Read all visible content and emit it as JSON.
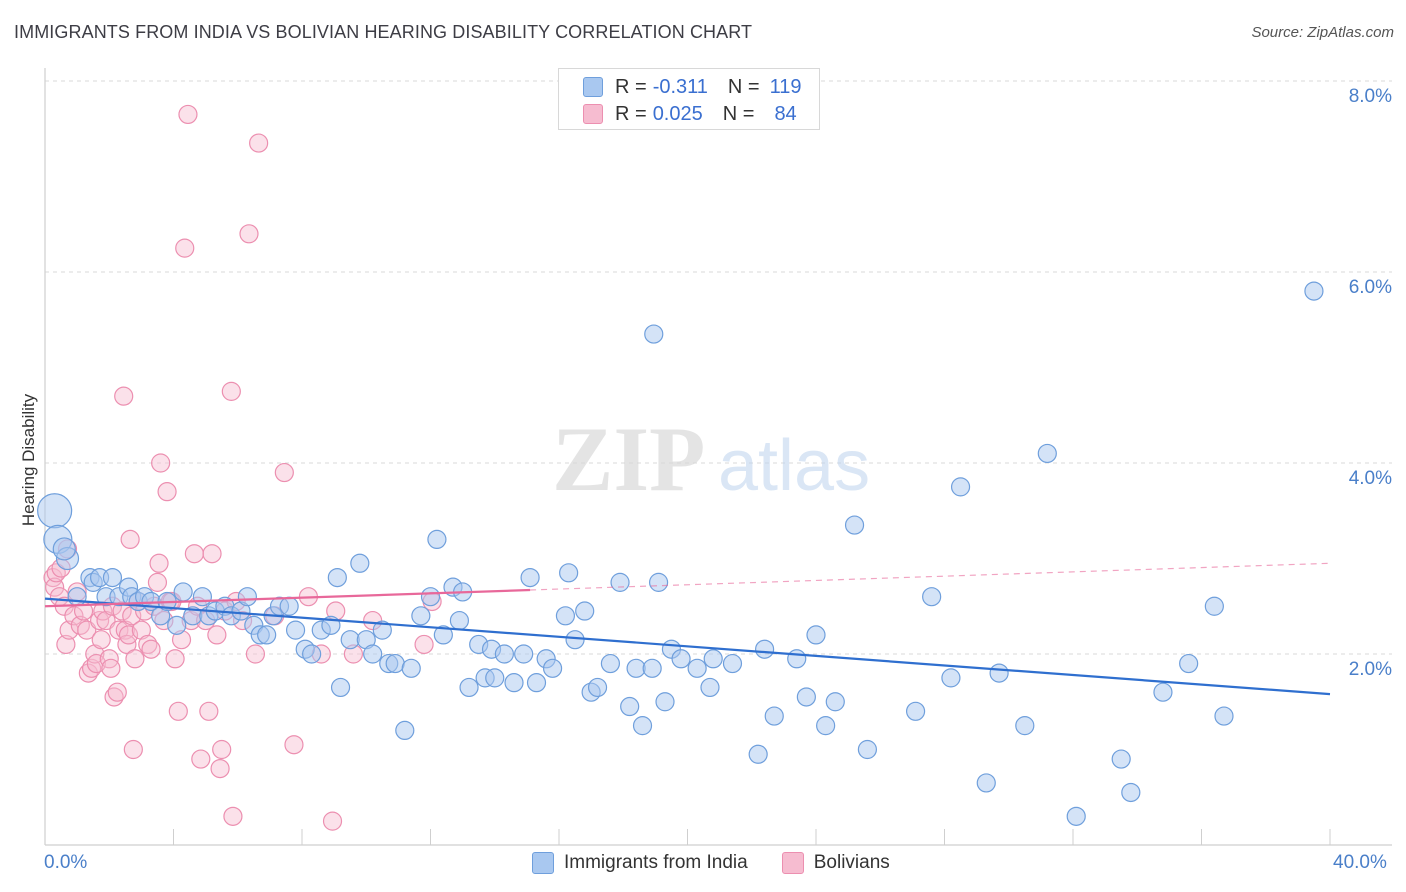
{
  "header": {
    "title": "IMMIGRANTS FROM INDIA VS BOLIVIAN HEARING DISABILITY CORRELATION CHART",
    "source": "Source: ZipAtlas.com"
  },
  "watermark": {
    "zip": "ZIP",
    "atlas": "atlas"
  },
  "legend_top": [
    {
      "r_label": "R =",
      "r_value": "-0.311",
      "n_label": "N =",
      "n_value": "119"
    },
    {
      "r_label": "R =",
      "r_value": "0.025",
      "n_label": "N =",
      "n_value": "84"
    }
  ],
  "legend_bottom": [
    {
      "label": "Immigrants from India"
    },
    {
      "label": "Bolivians"
    }
  ],
  "colors": {
    "india_fill": "#a9c8f0",
    "india_stroke": "#6f9fdc",
    "india_line": "#2f6fcf",
    "bolivia_fill": "#f6bcd0",
    "bolivia_stroke": "#ec8fb0",
    "bolivia_line": "#e8689a",
    "tick_text": "#4a7fc9",
    "grid": "#dadada"
  },
  "chart_data": {
    "type": "scatter",
    "title": "IMMIGRANTS FROM INDIA VS BOLIVIAN HEARING DISABILITY CORRELATION CHART",
    "xlabel": "",
    "ylabel": "Hearing Disability",
    "xlim": [
      0,
      40
    ],
    "ylim": [
      0,
      8.5
    ],
    "x_tick_labels": [
      "0.0%",
      "40.0%"
    ],
    "y_ticks": [
      2,
      4,
      6,
      8
    ],
    "y_tick_labels": [
      "2.0%",
      "4.0%",
      "6.0%",
      "8.0%"
    ],
    "grid": "horizontal dashed",
    "series": [
      {
        "name": "Immigrants from India",
        "points": [
          [
            0.3,
            3.5
          ],
          [
            0.4,
            3.2
          ],
          [
            0.7,
            3.0
          ],
          [
            0.6,
            3.1
          ],
          [
            1.0,
            2.6
          ],
          [
            1.4,
            2.8
          ],
          [
            1.5,
            2.75
          ],
          [
            1.7,
            2.8
          ],
          [
            1.9,
            2.6
          ],
          [
            2.1,
            2.8
          ],
          [
            2.3,
            2.6
          ],
          [
            2.6,
            2.7
          ],
          [
            2.7,
            2.6
          ],
          [
            2.9,
            2.55
          ],
          [
            3.1,
            2.6
          ],
          [
            3.3,
            2.55
          ],
          [
            3.6,
            2.4
          ],
          [
            3.8,
            2.55
          ],
          [
            4.1,
            2.3
          ],
          [
            4.3,
            2.65
          ],
          [
            4.6,
            2.4
          ],
          [
            4.9,
            2.6
          ],
          [
            5.1,
            2.4
          ],
          [
            5.3,
            2.45
          ],
          [
            5.6,
            2.5
          ],
          [
            5.8,
            2.4
          ],
          [
            6.1,
            2.45
          ],
          [
            6.3,
            2.6
          ],
          [
            6.5,
            2.3
          ],
          [
            6.7,
            2.2
          ],
          [
            6.9,
            2.2
          ],
          [
            7.1,
            2.4
          ],
          [
            7.3,
            2.5
          ],
          [
            7.6,
            2.5
          ],
          [
            7.8,
            2.25
          ],
          [
            8.1,
            2.05
          ],
          [
            8.3,
            2.0
          ],
          [
            8.6,
            2.25
          ],
          [
            8.9,
            2.3
          ],
          [
            9.1,
            2.8
          ],
          [
            9.2,
            1.65
          ],
          [
            9.5,
            2.15
          ],
          [
            9.8,
            2.95
          ],
          [
            10.0,
            2.15
          ],
          [
            10.2,
            2.0
          ],
          [
            10.5,
            2.25
          ],
          [
            10.7,
            1.9
          ],
          [
            10.9,
            1.9
          ],
          [
            11.2,
            1.2
          ],
          [
            11.4,
            1.85
          ],
          [
            11.7,
            2.4
          ],
          [
            12.0,
            2.6
          ],
          [
            12.2,
            3.2
          ],
          [
            12.4,
            2.2
          ],
          [
            12.7,
            2.7
          ],
          [
            12.9,
            2.35
          ],
          [
            13.0,
            2.65
          ],
          [
            13.2,
            1.65
          ],
          [
            13.5,
            2.1
          ],
          [
            13.7,
            1.75
          ],
          [
            13.9,
            2.05
          ],
          [
            14.0,
            1.75
          ],
          [
            14.3,
            2.0
          ],
          [
            14.6,
            1.7
          ],
          [
            14.9,
            2.0
          ],
          [
            15.1,
            2.8
          ],
          [
            15.3,
            1.7
          ],
          [
            15.6,
            1.95
          ],
          [
            15.8,
            1.85
          ],
          [
            16.2,
            2.4
          ],
          [
            16.3,
            2.85
          ],
          [
            16.5,
            2.15
          ],
          [
            16.8,
            2.45
          ],
          [
            17.0,
            1.6
          ],
          [
            17.2,
            1.65
          ],
          [
            17.6,
            1.9
          ],
          [
            17.9,
            2.75
          ],
          [
            18.2,
            1.45
          ],
          [
            18.4,
            1.85
          ],
          [
            18.6,
            1.25
          ],
          [
            18.9,
            1.85
          ],
          [
            18.95,
            5.35
          ],
          [
            19.1,
            2.75
          ],
          [
            19.3,
            1.5
          ],
          [
            19.5,
            2.05
          ],
          [
            19.8,
            1.95
          ],
          [
            20.3,
            1.85
          ],
          [
            20.7,
            1.65
          ],
          [
            20.8,
            1.95
          ],
          [
            21.4,
            1.9
          ],
          [
            22.2,
            0.95
          ],
          [
            22.4,
            2.05
          ],
          [
            22.7,
            1.35
          ],
          [
            23.4,
            1.95
          ],
          [
            23.7,
            1.55
          ],
          [
            24.0,
            2.2
          ],
          [
            24.3,
            1.25
          ],
          [
            24.6,
            1.5
          ],
          [
            25.2,
            3.35
          ],
          [
            25.6,
            1.0
          ],
          [
            27.1,
            1.4
          ],
          [
            27.6,
            2.6
          ],
          [
            28.2,
            1.75
          ],
          [
            28.5,
            3.75
          ],
          [
            29.3,
            0.65
          ],
          [
            29.7,
            1.8
          ],
          [
            30.5,
            1.25
          ],
          [
            31.2,
            4.1
          ],
          [
            32.1,
            0.3
          ],
          [
            33.5,
            0.9
          ],
          [
            33.8,
            0.55
          ],
          [
            34.8,
            1.6
          ],
          [
            35.6,
            1.9
          ],
          [
            36.4,
            2.5
          ],
          [
            36.7,
            1.35
          ],
          [
            39.5,
            5.8
          ]
        ],
        "trend": {
          "x": [
            0,
            40
          ],
          "y": [
            2.58,
            1.58
          ]
        }
      },
      {
        "name": "Bolivians",
        "points": [
          [
            0.25,
            2.8
          ],
          [
            0.3,
            2.7
          ],
          [
            0.35,
            2.85
          ],
          [
            0.45,
            2.6
          ],
          [
            0.5,
            2.9
          ],
          [
            0.6,
            2.5
          ],
          [
            0.65,
            2.1
          ],
          [
            0.7,
            3.1
          ],
          [
            0.75,
            2.25
          ],
          [
            0.9,
            2.4
          ],
          [
            1.0,
            2.65
          ],
          [
            1.1,
            2.3
          ],
          [
            1.2,
            2.45
          ],
          [
            1.3,
            2.25
          ],
          [
            1.35,
            1.8
          ],
          [
            1.45,
            1.85
          ],
          [
            1.55,
            2.0
          ],
          [
            1.6,
            1.9
          ],
          [
            1.7,
            2.35
          ],
          [
            1.75,
            2.15
          ],
          [
            1.8,
            2.45
          ],
          [
            1.9,
            2.35
          ],
          [
            2.0,
            1.95
          ],
          [
            2.05,
            1.85
          ],
          [
            2.1,
            2.5
          ],
          [
            2.15,
            1.55
          ],
          [
            2.25,
            1.6
          ],
          [
            2.3,
            2.25
          ],
          [
            2.4,
            2.45
          ],
          [
            2.45,
            4.7
          ],
          [
            2.5,
            2.25
          ],
          [
            2.55,
            2.1
          ],
          [
            2.6,
            2.2
          ],
          [
            2.65,
            3.2
          ],
          [
            2.7,
            2.4
          ],
          [
            2.75,
            1.0
          ],
          [
            2.8,
            1.95
          ],
          [
            2.9,
            2.55
          ],
          [
            3.0,
            2.25
          ],
          [
            3.1,
            2.45
          ],
          [
            3.2,
            2.1
          ],
          [
            3.3,
            2.05
          ],
          [
            3.4,
            2.5
          ],
          [
            3.5,
            2.75
          ],
          [
            3.55,
            2.95
          ],
          [
            3.6,
            4.0
          ],
          [
            3.7,
            2.35
          ],
          [
            3.8,
            3.7
          ],
          [
            3.9,
            2.55
          ],
          [
            3.95,
            2.55
          ],
          [
            4.05,
            1.95
          ],
          [
            4.15,
            1.4
          ],
          [
            4.25,
            2.15
          ],
          [
            4.35,
            6.25
          ],
          [
            4.45,
            7.65
          ],
          [
            4.55,
            2.35
          ],
          [
            4.65,
            3.05
          ],
          [
            4.75,
            2.5
          ],
          [
            4.85,
            0.9
          ],
          [
            5.0,
            2.35
          ],
          [
            5.1,
            1.4
          ],
          [
            5.2,
            3.05
          ],
          [
            5.35,
            2.2
          ],
          [
            5.45,
            0.8
          ],
          [
            5.5,
            1.0
          ],
          [
            5.6,
            2.45
          ],
          [
            5.8,
            4.75
          ],
          [
            5.85,
            0.3
          ],
          [
            5.95,
            2.55
          ],
          [
            6.15,
            2.35
          ],
          [
            6.35,
            6.4
          ],
          [
            6.55,
            2.0
          ],
          [
            6.65,
            7.35
          ],
          [
            7.15,
            2.4
          ],
          [
            7.45,
            3.9
          ],
          [
            7.75,
            1.05
          ],
          [
            8.2,
            2.6
          ],
          [
            8.6,
            2.0
          ],
          [
            8.95,
            0.25
          ],
          [
            9.05,
            2.45
          ],
          [
            9.6,
            2.0
          ],
          [
            10.2,
            2.35
          ],
          [
            11.8,
            2.1
          ],
          [
            12.05,
            2.55
          ]
        ],
        "trend": {
          "x": [
            0,
            15.1
          ],
          "y": [
            2.5,
            2.67
          ]
        },
        "trend_dashed": {
          "x": [
            15.1,
            40
          ],
          "y": [
            2.67,
            2.95
          ]
        }
      }
    ]
  }
}
